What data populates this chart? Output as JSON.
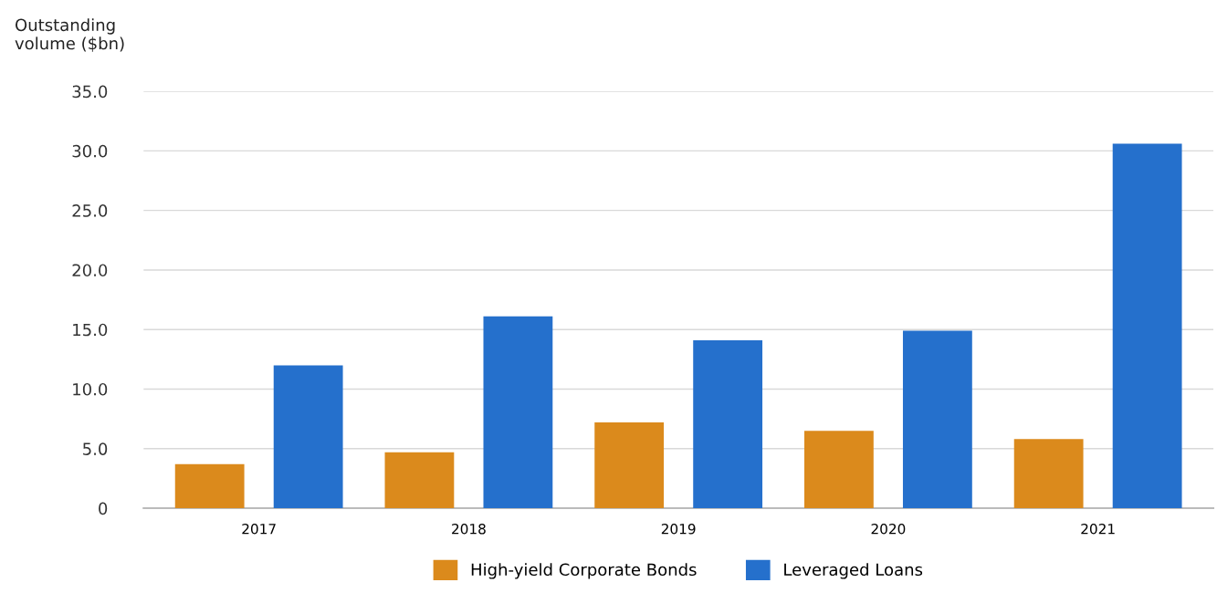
{
  "chart_data": {
    "type": "bar",
    "ylabel": "Outstanding\nvolume ($bn)",
    "categories": [
      "2017",
      "2018",
      "2019",
      "2020",
      "2021"
    ],
    "series": [
      {
        "name": "High-yield Corporate Bonds",
        "color": "#db8a1c",
        "values": [
          3.7,
          4.7,
          7.2,
          6.5,
          5.8
        ]
      },
      {
        "name": "Leveraged Loans",
        "color": "#2570cc",
        "values": [
          12.0,
          16.1,
          14.1,
          14.9,
          30.6
        ]
      }
    ],
    "ylim": [
      0,
      35
    ],
    "yticks": [
      {
        "value": 0,
        "label": "0"
      },
      {
        "value": 5,
        "label": "5.0"
      },
      {
        "value": 10,
        "label": "10.0"
      },
      {
        "value": 15,
        "label": "15.0"
      },
      {
        "value": 20,
        "label": "20.0"
      },
      {
        "value": 25,
        "label": "25.0"
      },
      {
        "value": 30,
        "label": "30.0"
      },
      {
        "value": 35,
        "label": "35.0"
      }
    ],
    "grid": "y",
    "legend": "bottom"
  }
}
